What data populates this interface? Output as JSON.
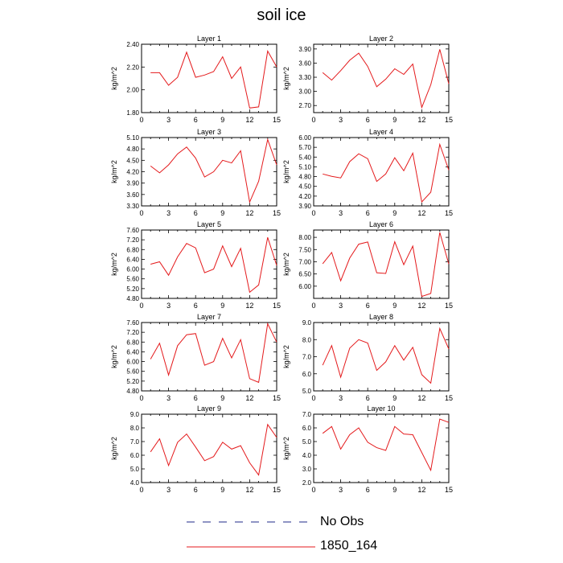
{
  "figure": {
    "title": "soil ice"
  },
  "legend": {
    "items": [
      {
        "label": "No Obs",
        "color": "#1f2a8a",
        "style": "dashed"
      },
      {
        "label": "1850_164",
        "color": "#e41a1c",
        "style": "solid"
      }
    ]
  },
  "chart_data": [
    {
      "type": "line",
      "title": "Layer 1",
      "ylabel": "kg/m^2",
      "xlim": [
        0,
        15
      ],
      "ylim": [
        1.8,
        2.4
      ],
      "xticks": [
        0,
        3,
        6,
        9,
        12,
        15
      ],
      "yticks": [
        1.8,
        2.0,
        2.2,
        2.4
      ],
      "ytick_decimals": 2,
      "series": [
        {
          "color": "#e41a1c",
          "x": [
            1,
            2,
            3,
            4,
            5,
            6,
            7,
            8,
            9,
            10,
            11,
            12,
            13,
            14,
            15
          ],
          "y": [
            2.15,
            2.15,
            2.04,
            2.11,
            2.33,
            2.11,
            2.13,
            2.16,
            2.29,
            2.1,
            2.2,
            1.84,
            1.85,
            2.34,
            2.2
          ]
        }
      ]
    },
    {
      "type": "line",
      "title": "Layer 2",
      "ylabel": "kg/m^2",
      "xlim": [
        0,
        15
      ],
      "ylim": [
        2.55,
        4.0
      ],
      "xticks": [
        0,
        3,
        6,
        9,
        12,
        15
      ],
      "yticks": [
        2.7,
        3.0,
        3.3,
        3.6,
        3.9
      ],
      "ytick_decimals": 2,
      "series": [
        {
          "color": "#e41a1c",
          "x": [
            1,
            2,
            3,
            4,
            5,
            6,
            7,
            8,
            9,
            10,
            11,
            12,
            13,
            14,
            15
          ],
          "y": [
            3.4,
            3.24,
            3.44,
            3.66,
            3.81,
            3.53,
            3.1,
            3.26,
            3.48,
            3.36,
            3.58,
            2.66,
            3.14,
            3.89,
            3.16
          ]
        }
      ]
    },
    {
      "type": "line",
      "title": "Layer 3",
      "ylabel": "kg/m^2",
      "xlim": [
        0,
        15
      ],
      "ylim": [
        3.3,
        5.1
      ],
      "xticks": [
        0,
        3,
        6,
        9,
        12,
        15
      ],
      "yticks": [
        3.3,
        3.6,
        3.9,
        4.2,
        4.5,
        4.8,
        5.1
      ],
      "ytick_decimals": 2,
      "series": [
        {
          "color": "#e41a1c",
          "x": [
            1,
            2,
            3,
            4,
            5,
            6,
            7,
            8,
            9,
            10,
            11,
            12,
            13,
            14,
            15
          ],
          "y": [
            4.35,
            4.17,
            4.38,
            4.67,
            4.85,
            4.56,
            4.06,
            4.2,
            4.5,
            4.43,
            4.75,
            3.4,
            3.95,
            5.05,
            4.38
          ]
        }
      ]
    },
    {
      "type": "line",
      "title": "Layer 4",
      "ylabel": "kg/m^2",
      "xlim": [
        0,
        15
      ],
      "ylim": [
        3.9,
        6.0
      ],
      "xticks": [
        0,
        3,
        6,
        9,
        12,
        15
      ],
      "yticks": [
        3.9,
        4.2,
        4.5,
        4.8,
        5.1,
        5.4,
        5.7,
        6.0
      ],
      "ytick_decimals": 2,
      "series": [
        {
          "color": "#e41a1c",
          "x": [
            1,
            2,
            3,
            4,
            5,
            6,
            7,
            8,
            9,
            10,
            11,
            12,
            13,
            14,
            15
          ],
          "y": [
            4.88,
            4.81,
            4.76,
            5.26,
            5.5,
            5.35,
            4.65,
            4.88,
            5.38,
            4.98,
            5.52,
            4.02,
            4.32,
            5.79,
            5.0
          ]
        }
      ]
    },
    {
      "type": "line",
      "title": "Layer 5",
      "ylabel": "kg/m^2",
      "xlim": [
        0,
        15
      ],
      "ylim": [
        4.8,
        7.6
      ],
      "xticks": [
        0,
        3,
        6,
        9,
        12,
        15
      ],
      "yticks": [
        4.8,
        5.2,
        5.6,
        6.0,
        6.4,
        6.8,
        7.2,
        7.6
      ],
      "ytick_decimals": 2,
      "series": [
        {
          "color": "#e41a1c",
          "x": [
            1,
            2,
            3,
            4,
            5,
            6,
            7,
            8,
            9,
            10,
            11,
            12,
            13,
            14,
            15
          ],
          "y": [
            6.2,
            6.3,
            5.75,
            6.5,
            7.05,
            6.87,
            5.85,
            6.0,
            6.95,
            6.1,
            6.85,
            5.05,
            5.35,
            7.3,
            6.15
          ]
        }
      ]
    },
    {
      "type": "line",
      "title": "Layer 6",
      "ylabel": "kg/m^2",
      "xlim": [
        0,
        15
      ],
      "ylim": [
        5.5,
        8.3
      ],
      "xticks": [
        0,
        3,
        6,
        9,
        12,
        15
      ],
      "yticks": [
        6.0,
        6.5,
        7.0,
        7.5,
        8.0
      ],
      "ytick_decimals": 2,
      "series": [
        {
          "color": "#e41a1c",
          "x": [
            1,
            2,
            3,
            4,
            5,
            6,
            7,
            8,
            9,
            10,
            11,
            12,
            13,
            14,
            15
          ],
          "y": [
            6.92,
            7.38,
            6.22,
            7.15,
            7.72,
            7.81,
            6.55,
            6.52,
            7.82,
            6.88,
            7.64,
            5.58,
            5.7,
            8.2,
            6.91
          ]
        }
      ]
    },
    {
      "type": "line",
      "title": "Layer 7",
      "ylabel": "kg/m^2",
      "xlim": [
        0,
        15
      ],
      "ylim": [
        4.8,
        7.6
      ],
      "xticks": [
        0,
        3,
        6,
        9,
        12,
        15
      ],
      "yticks": [
        4.8,
        5.2,
        5.6,
        6.0,
        6.4,
        6.8,
        7.2,
        7.6
      ],
      "ytick_decimals": 2,
      "series": [
        {
          "color": "#e41a1c",
          "x": [
            1,
            2,
            3,
            4,
            5,
            6,
            7,
            8,
            9,
            10,
            11,
            12,
            13,
            14,
            15
          ],
          "y": [
            6.1,
            6.75,
            5.45,
            6.65,
            7.1,
            7.15,
            5.85,
            6.0,
            6.95,
            6.15,
            6.9,
            5.3,
            5.15,
            7.55,
            6.8
          ]
        }
      ]
    },
    {
      "type": "line",
      "title": "Layer 8",
      "ylabel": "kg/m^2",
      "xlim": [
        0,
        15
      ],
      "ylim": [
        5.0,
        9.0
      ],
      "xticks": [
        0,
        3,
        6,
        9,
        12,
        15
      ],
      "yticks": [
        5.0,
        6.0,
        7.0,
        8.0,
        9.0
      ],
      "ytick_decimals": 1,
      "series": [
        {
          "color": "#e41a1c",
          "x": [
            1,
            2,
            3,
            4,
            5,
            6,
            7,
            8,
            9,
            10,
            11,
            12,
            13,
            14,
            15
          ],
          "y": [
            6.5,
            7.65,
            5.8,
            7.5,
            8.0,
            7.8,
            6.2,
            6.7,
            7.65,
            6.8,
            7.55,
            5.95,
            5.45,
            8.65,
            7.45
          ]
        }
      ]
    },
    {
      "type": "line",
      "title": "Layer 9",
      "ylabel": "kg/m^2",
      "xlim": [
        0,
        15
      ],
      "ylim": [
        4.0,
        9.0
      ],
      "xticks": [
        0,
        3,
        6,
        9,
        12,
        15
      ],
      "yticks": [
        4.0,
        5.0,
        6.0,
        7.0,
        8.0,
        9.0
      ],
      "ytick_decimals": 1,
      "series": [
        {
          "color": "#e41a1c",
          "x": [
            1,
            2,
            3,
            4,
            5,
            6,
            7,
            8,
            9,
            10,
            11,
            12,
            13,
            14,
            15
          ],
          "y": [
            6.25,
            7.2,
            5.25,
            6.95,
            7.55,
            6.6,
            5.6,
            5.9,
            6.95,
            6.45,
            6.7,
            5.45,
            4.55,
            8.25,
            7.3
          ]
        }
      ]
    },
    {
      "type": "line",
      "title": "Layer 10",
      "ylabel": "kg/m^2",
      "xlim": [
        0,
        15
      ],
      "ylim": [
        2.0,
        7.0
      ],
      "xticks": [
        0,
        3,
        6,
        9,
        12,
        15
      ],
      "yticks": [
        2.0,
        3.0,
        4.0,
        5.0,
        6.0,
        7.0
      ],
      "ytick_decimals": 1,
      "series": [
        {
          "color": "#e41a1c",
          "x": [
            1,
            2,
            3,
            4,
            5,
            6,
            7,
            8,
            9,
            10,
            11,
            12,
            13,
            14,
            15
          ],
          "y": [
            5.6,
            6.1,
            4.45,
            5.5,
            6.0,
            4.95,
            4.55,
            4.35,
            6.1,
            5.55,
            5.5,
            4.2,
            2.9,
            6.65,
            6.4
          ]
        }
      ]
    }
  ]
}
